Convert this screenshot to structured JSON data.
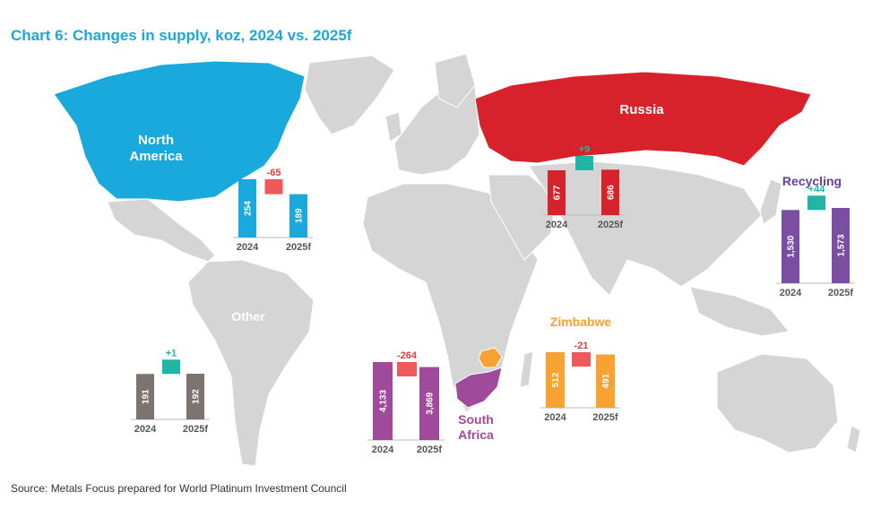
{
  "title": "Chart 6: Changes in supply, koz, 2024 vs. 2025f",
  "source": "Source: Metals Focus prepared for World Platinum Investment Council",
  "colors": {
    "north_america": "#1aa9dc",
    "russia": "#d8222b",
    "south_africa": "#a04a9c",
    "zimbabwe": "#f7a231",
    "recycling": "#7a4ea0",
    "other": "#7d7470",
    "increase": "#21b5a4",
    "decrease": "#ee5a5a",
    "land": "#d5d5d5"
  },
  "chart_data": [
    {
      "type": "bar",
      "region": "North America",
      "region_label": [
        "North",
        "America"
      ],
      "categories": [
        "2024",
        "2025f"
      ],
      "values": [
        254,
        189
      ],
      "change": -65,
      "change_label": "-65",
      "value_labels": [
        "254",
        "189"
      ]
    },
    {
      "type": "bar",
      "region": "Russia",
      "region_label": [
        "Russia"
      ],
      "categories": [
        "2024",
        "2025f"
      ],
      "values": [
        677,
        686
      ],
      "change": 9,
      "change_label": "+9",
      "value_labels": [
        "677",
        "686"
      ]
    },
    {
      "type": "bar",
      "region": "Recycling",
      "region_label": [
        "Recycling"
      ],
      "categories": [
        "2024",
        "2025f"
      ],
      "values": [
        1530,
        1573
      ],
      "change": 44,
      "change_label": "+44",
      "value_labels": [
        "1,530",
        "1,573"
      ]
    },
    {
      "type": "bar",
      "region": "Other",
      "region_label": [
        "Other"
      ],
      "categories": [
        "2024",
        "2025f"
      ],
      "values": [
        191,
        192
      ],
      "change": 1,
      "change_label": "+1",
      "value_labels": [
        "191",
        "192"
      ]
    },
    {
      "type": "bar",
      "region": "South Africa",
      "region_label": [
        "South",
        "Africa"
      ],
      "categories": [
        "2024",
        "2025f"
      ],
      "values": [
        4133,
        3869
      ],
      "change": -264,
      "change_label": "-264",
      "value_labels": [
        "4,133",
        "3,869"
      ]
    },
    {
      "type": "bar",
      "region": "Zimbabwe",
      "region_label": [
        "Zimbabwe"
      ],
      "categories": [
        "2024",
        "2025f"
      ],
      "values": [
        512,
        491
      ],
      "change": -21,
      "change_label": "-21",
      "value_labels": [
        "512",
        "491"
      ]
    }
  ]
}
